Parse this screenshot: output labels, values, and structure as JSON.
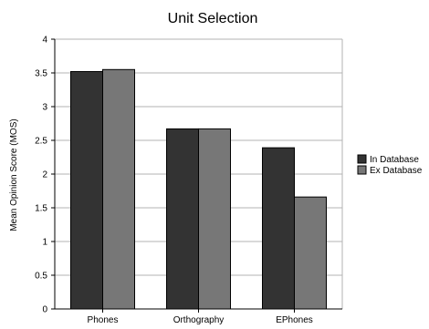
{
  "chart_data": {
    "type": "bar",
    "title": "Unit Selection",
    "xlabel": "",
    "ylabel": "Mean Opinion Score (MOS)",
    "categories": [
      "Phones",
      "Orthography",
      "EPhones"
    ],
    "series": [
      {
        "name": "In Database",
        "color": "#333333",
        "values": [
          3.52,
          2.67,
          2.39
        ]
      },
      {
        "name": "Ex Database",
        "color": "#777777",
        "values": [
          3.55,
          2.67,
          1.66
        ]
      }
    ],
    "ylim": [
      0,
      4
    ],
    "yticks": [
      0,
      0.5,
      1,
      1.5,
      2,
      2.5,
      3,
      3.5,
      4
    ],
    "grid": true,
    "legend_position": "right"
  }
}
